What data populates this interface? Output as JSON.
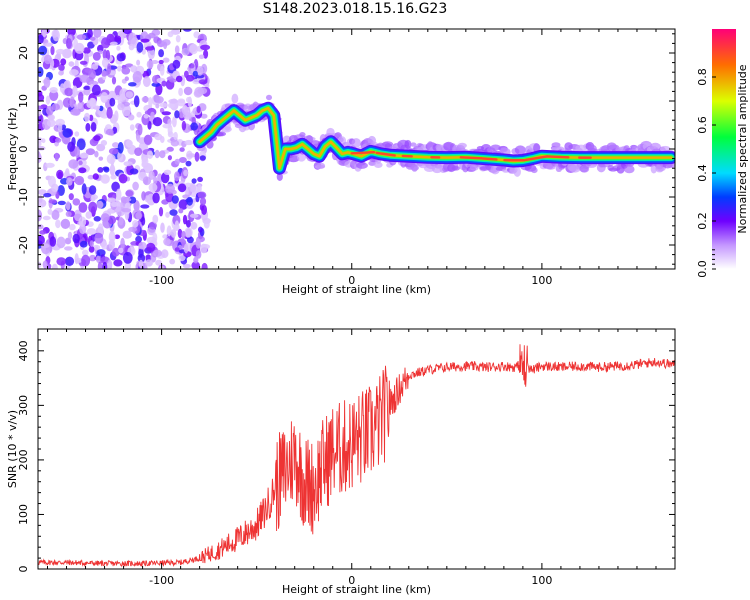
{
  "title": "S148.2023.018.15.16.G23",
  "chart_data": [
    {
      "type": "heatmap",
      "name": "spectrogram",
      "xlabel": "Height of straight line (km)",
      "ylabel": "Frequency (Hz)",
      "xlim": [
        -165,
        170
      ],
      "ylim": [
        -25,
        25
      ],
      "xticks": [
        -100,
        0,
        100
      ],
      "yticks": [
        -20,
        -10,
        0,
        10,
        20
      ],
      "noise_region_x": [
        -165,
        -76
      ],
      "ridge": {
        "x": [
          -80,
          -77,
          -74,
          -71,
          -68,
          -65,
          -62,
          -59,
          -56,
          -53,
          -50,
          -47,
          -44,
          -41,
          -38,
          -35,
          -32,
          -29,
          -26,
          -23,
          -20,
          -17,
          -14,
          -11,
          -8,
          -5,
          -2,
          1,
          5,
          10,
          15,
          20,
          30,
          40,
          50,
          60,
          70,
          80,
          85,
          90,
          95,
          100,
          110,
          120,
          130,
          140,
          150,
          160,
          168
        ],
        "y": [
          1.5,
          2.5,
          3.5,
          5,
          6,
          7,
          8,
          7,
          6,
          6.5,
          7,
          8,
          8.5,
          7,
          -4,
          0,
          0,
          0.3,
          1,
          0,
          -1,
          -1.5,
          0.5,
          1.5,
          0.3,
          -1,
          -0.7,
          -1,
          -1.5,
          -0.5,
          -1,
          -1.3,
          -1.5,
          -1.7,
          -1.8,
          -1.7,
          -2,
          -2.3,
          -2.5,
          -2.4,
          -2,
          -1.5,
          -1.7,
          -1.8,
          -1.8,
          -1.8,
          -1.8,
          -1.8,
          -1.8
        ]
      },
      "colorbar": {
        "label": "Normalized spectral amplitude",
        "ticks": [
          "0.0",
          "0.2",
          "0.4",
          "0.6",
          "0.8"
        ],
        "range": [
          0,
          1
        ]
      }
    },
    {
      "type": "line",
      "name": "snr",
      "xlabel": "Height of straight line (km)",
      "ylabel": "SNR (10 * v/v)",
      "xlim": [
        -165,
        170
      ],
      "ylim": [
        0,
        440
      ],
      "xticks": [
        -100,
        0,
        100
      ],
      "yticks": [
        0,
        100,
        200,
        300,
        400
      ],
      "series": [
        {
          "name": "SNR",
          "color": "#ee3333",
          "x": [
            -165,
            -150,
            -130,
            -110,
            -90,
            -80,
            -70,
            -60,
            -50,
            -45,
            -40,
            -35,
            -30,
            -25,
            -20,
            -15,
            -10,
            -5,
            0,
            5,
            10,
            15,
            20,
            25,
            30,
            40,
            50,
            60,
            70,
            80,
            85,
            90,
            95,
            100,
            110,
            120,
            130,
            140,
            150,
            160,
            168
          ],
          "values": [
            12,
            12,
            10,
            10,
            12,
            20,
            35,
            55,
            80,
            110,
            150,
            180,
            210,
            160,
            150,
            190,
            215,
            220,
            230,
            240,
            250,
            270,
            300,
            330,
            355,
            365,
            370,
            372,
            370,
            372,
            370,
            375,
            365,
            372,
            370,
            372,
            370,
            372,
            375,
            380,
            375
          ]
        }
      ]
    }
  ]
}
